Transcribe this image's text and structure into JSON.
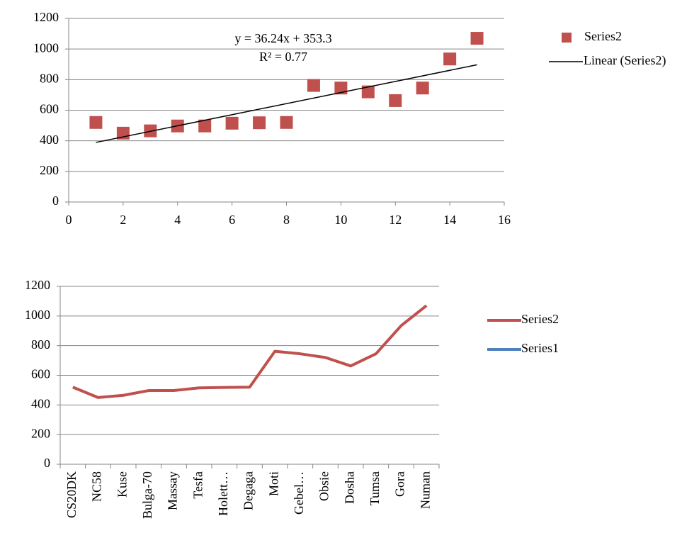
{
  "chart_data": [
    {
      "type": "scatter",
      "annotations": [
        "y = 36.24x + 353.3",
        "R² = 0.77"
      ],
      "series": [
        {
          "name": "Series2",
          "color": "#c0504d",
          "x": [
            1,
            2,
            3,
            4,
            5,
            6,
            7,
            8,
            9,
            10,
            11,
            12,
            13,
            14,
            15
          ],
          "values": [
            520,
            450,
            465,
            497,
            497,
            515,
            518,
            520,
            762,
            745,
            720,
            663,
            745,
            935,
            1070
          ]
        },
        {
          "name": "Linear (Series2)",
          "color": "#000000",
          "x": [
            1,
            15
          ],
          "values": [
            389.5,
            896.9
          ]
        }
      ],
      "xlim": [
        0,
        16
      ],
      "xticks": [
        0,
        2,
        4,
        6,
        8,
        10,
        12,
        14,
        16
      ],
      "ylim": [
        0,
        1200
      ],
      "yticks": [
        0,
        200,
        400,
        600,
        800,
        1000,
        1200
      ],
      "grid": true
    },
    {
      "type": "line",
      "categories": [
        "CS20DK",
        "NC58",
        "Kuse",
        "Bulga-70",
        "Massay",
        "Tesfa",
        "Holett…",
        "Degaga",
        "Moti",
        "Gebel…",
        "Obsie",
        "Dosha",
        "Tumsa",
        "Gora",
        "Numan"
      ],
      "series": [
        {
          "name": "Series2",
          "color": "#c0504d",
          "values": [
            520,
            450,
            465,
            497,
            497,
            515,
            518,
            520,
            762,
            745,
            720,
            663,
            745,
            935,
            1070
          ]
        },
        {
          "name": "Series1",
          "color": "#4f81bd",
          "values": [
            null,
            null,
            null,
            null,
            null,
            null,
            null,
            null,
            null,
            null,
            null,
            null,
            null,
            null,
            null
          ]
        }
      ],
      "ylim": [
        0,
        1200
      ],
      "yticks": [
        0,
        200,
        400,
        600,
        800,
        1000,
        1200
      ],
      "grid": true
    }
  ]
}
